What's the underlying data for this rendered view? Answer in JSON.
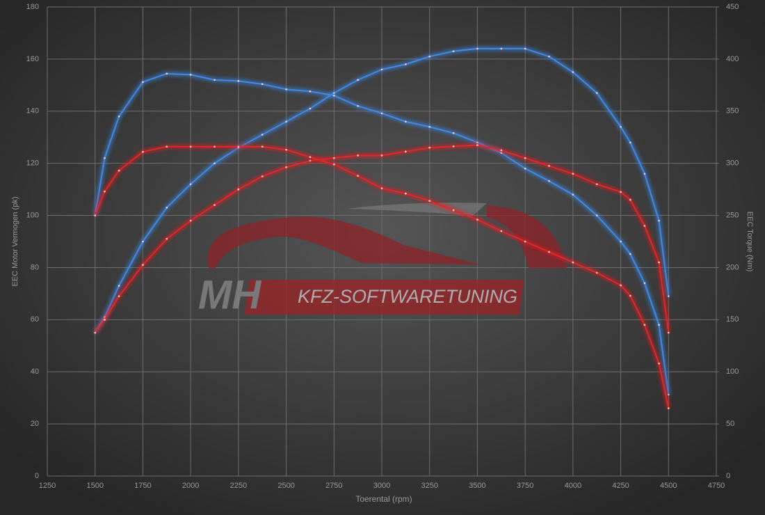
{
  "chart_data": {
    "type": "line",
    "x_label": "Toerental (rpm)",
    "y_label": "EEC Motor Vermogen (pk)",
    "y2_label": "EEC Torque (Nm)",
    "watermark": {
      "left": "MH",
      "right": "KFZ-SOFTWARETUNING"
    },
    "x": [
      1500,
      1550,
      1625,
      1750,
      1875,
      2000,
      2125,
      2250,
      2375,
      2500,
      2625,
      2750,
      2875,
      3000,
      3125,
      3250,
      3375,
      3500,
      3625,
      3750,
      3875,
      4000,
      4125,
      4250,
      4300,
      4375,
      4450,
      4500
    ],
    "series": [
      {
        "color": "#3f8ae6",
        "axis": "y",
        "values": [
          55,
          61,
          73,
          90,
          103,
          112,
          120,
          126,
          131,
          136,
          141,
          147,
          152,
          156,
          158,
          161,
          163,
          164,
          164,
          164,
          161,
          155,
          147,
          134,
          128,
          116,
          98,
          69
        ]
      },
      {
        "color": "#3f8ae6",
        "axis": "y2",
        "values": [
          250,
          305,
          345,
          378,
          386,
          385,
          380,
          379,
          376,
          371,
          369,
          365,
          355,
          348,
          340,
          335,
          329,
          320,
          310,
          295,
          283,
          270,
          250,
          225,
          213,
          185,
          145,
          78
        ]
      },
      {
        "color": "#e3262a",
        "axis": "y",
        "values": [
          55,
          60,
          69,
          81,
          91,
          98,
          104,
          110,
          115,
          118.5,
          121,
          122,
          123,
          123,
          124.5,
          126,
          126.5,
          127,
          125,
          122,
          119,
          116,
          112,
          109,
          106,
          96,
          82,
          55
        ]
      },
      {
        "color": "#e3262a",
        "axis": "y2",
        "values": [
          250,
          273,
          293,
          311,
          316,
          316,
          316,
          316,
          316,
          313,
          306,
          299,
          288,
          276,
          271,
          264,
          255,
          246,
          235,
          225,
          215,
          205,
          195,
          183,
          173,
          145,
          108,
          65
        ]
      }
    ],
    "xlim": [
      1250,
      4750
    ],
    "xticks": [
      1250,
      1500,
      1750,
      2000,
      2250,
      2500,
      2750,
      3000,
      3250,
      3500,
      3750,
      4000,
      4250,
      4500,
      4750
    ],
    "ylim": [
      0,
      180
    ],
    "yticks": [
      0,
      20,
      40,
      60,
      80,
      100,
      120,
      140,
      160,
      180
    ],
    "y2lim": [
      0,
      450
    ],
    "y2ticks": [
      0,
      50,
      100,
      150,
      200,
      250,
      300,
      350,
      400,
      450
    ],
    "grid": true
  }
}
